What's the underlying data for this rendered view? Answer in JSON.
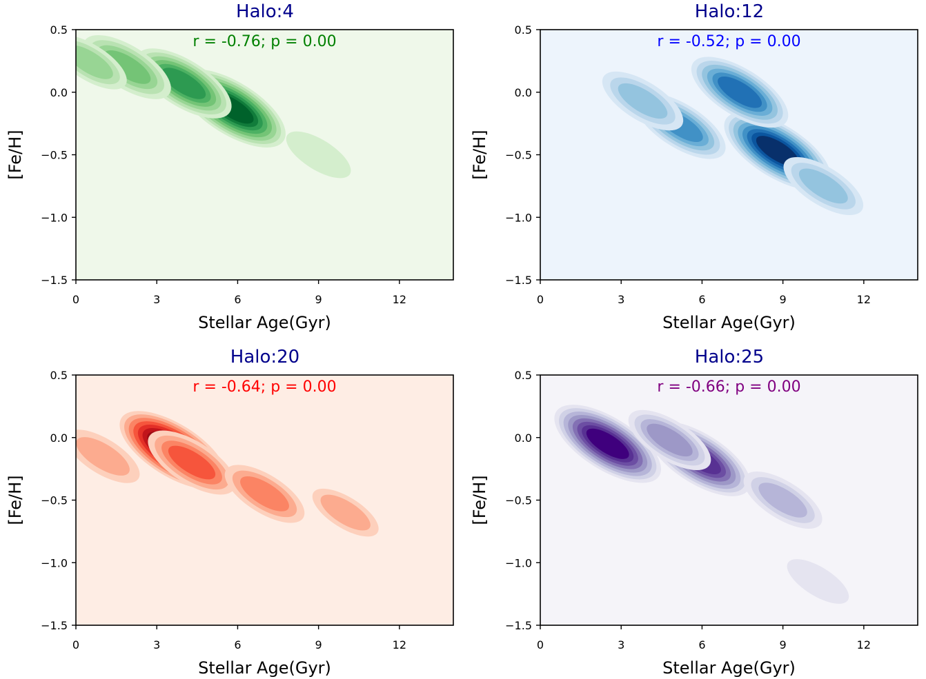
{
  "chart_data": [
    {
      "type": "contour",
      "title": "Halo:4",
      "annotation": "r = -0.76; p = 0.00",
      "xlabel": "Stellar Age(Gyr)",
      "ylabel": "[Fe/H]",
      "xlim": [
        0,
        14
      ],
      "ylim": [
        -1.5,
        0.5
      ],
      "xticks": [
        0,
        3,
        6,
        9,
        12
      ],
      "yticks": [
        -1.5,
        -1.0,
        -0.5,
        0.0,
        0.5
      ],
      "ytick_labels": [
        "−1.5",
        "−1.0",
        "−0.5",
        "0.0",
        "0.5"
      ],
      "colormap": "Greens",
      "colors": [
        "#eff8ea",
        "#d4eecd",
        "#b9e2b2",
        "#98d594",
        "#74c476",
        "#4db163",
        "#2d9a51",
        "#117c3b",
        "#00622b"
      ],
      "peaks": [
        {
          "x": 5.8,
          "y": -0.13,
          "level": 1.0
        },
        {
          "x": 4.0,
          "y": 0.07,
          "level": 0.72
        },
        {
          "x": 1.9,
          "y": 0.2,
          "level": 0.55
        },
        {
          "x": 0.5,
          "y": 0.24,
          "level": 0.32
        },
        {
          "x": 9.0,
          "y": -0.5,
          "level": 0.18
        }
      ]
    },
    {
      "type": "contour",
      "title": "Halo:12",
      "annotation": "r = -0.52; p = 0.00",
      "xlabel": "Stellar Age(Gyr)",
      "ylabel": "[Fe/H]",
      "xlim": [
        0,
        14
      ],
      "ylim": [
        -1.5,
        0.5
      ],
      "xticks": [
        0,
        3,
        6,
        9,
        12
      ],
      "yticks": [
        -1.5,
        -1.0,
        -0.5,
        0.0,
        0.5
      ],
      "ytick_labels": [
        "−1.5",
        "−1.0",
        "−0.5",
        "0.0",
        "0.5"
      ],
      "colormap": "Blues",
      "colors": [
        "#edf4fc",
        "#d6e6f4",
        "#bad6eb",
        "#94c4df",
        "#6aaed6",
        "#4191c6",
        "#2171b5",
        "#0b559f",
        "#08306b"
      ],
      "peaks": [
        {
          "x": 8.8,
          "y": -0.47,
          "level": 1.0
        },
        {
          "x": 7.4,
          "y": 0.0,
          "level": 0.75
        },
        {
          "x": 5.2,
          "y": -0.27,
          "level": 0.6
        },
        {
          "x": 3.8,
          "y": -0.07,
          "level": 0.42
        },
        {
          "x": 10.5,
          "y": -0.75,
          "level": 0.4
        }
      ]
    },
    {
      "type": "contour",
      "title": "Halo:20",
      "annotation": "r = -0.64; p = 0.00",
      "xlabel": "Stellar Age(Gyr)",
      "ylabel": "[Fe/H]",
      "xlim": [
        0,
        14
      ],
      "ylim": [
        -1.5,
        0.5
      ],
      "xticks": [
        0,
        3,
        6,
        9,
        12
      ],
      "yticks": [
        -1.5,
        -1.0,
        -0.5,
        0.0,
        0.5
      ],
      "ytick_labels": [
        "−1.5",
        "−1.0",
        "−0.5",
        "0.0",
        "0.5"
      ],
      "colormap": "Reds",
      "colors": [
        "#feede4",
        "#fdd0bc",
        "#fcab8f",
        "#fb8464",
        "#f6553c",
        "#e32f27",
        "#c1151b",
        "#9d0d15",
        "#67000d"
      ],
      "peaks": [
        {
          "x": 3.6,
          "y": -0.1,
          "level": 1.0
        },
        {
          "x": 4.3,
          "y": -0.2,
          "level": 0.55
        },
        {
          "x": 7.0,
          "y": -0.45,
          "level": 0.4
        },
        {
          "x": 1.0,
          "y": -0.15,
          "level": 0.3
        },
        {
          "x": 10.0,
          "y": -0.6,
          "level": 0.2
        }
      ]
    },
    {
      "type": "contour",
      "title": "Halo:25",
      "annotation": "r = -0.66; p = 0.00",
      "xlabel": "Stellar Age(Gyr)",
      "ylabel": "[Fe/H]",
      "xlim": [
        0,
        14
      ],
      "ylim": [
        -1.5,
        0.5
      ],
      "xticks": [
        0,
        3,
        6,
        9,
        12
      ],
      "yticks": [
        -1.5,
        -1.0,
        -0.5,
        0.0,
        0.5
      ],
      "ytick_labels": [
        "−1.5",
        "−1.0",
        "−0.5",
        "0.0",
        "0.5"
      ],
      "colormap": "Purples",
      "colors": [
        "#f5f4f9",
        "#e5e4f0",
        "#d0d1e6",
        "#b6b5d8",
        "#9d98c7",
        "#8371b4",
        "#6c4ea3",
        "#583193",
        "#3f007d"
      ],
      "peaks": [
        {
          "x": 2.5,
          "y": -0.05,
          "level": 1.0
        },
        {
          "x": 5.9,
          "y": -0.17,
          "level": 0.88
        },
        {
          "x": 4.8,
          "y": -0.02,
          "level": 0.45
        },
        {
          "x": 9.0,
          "y": -0.5,
          "level": 0.38
        },
        {
          "x": 10.3,
          "y": -1.15,
          "level": 0.15
        }
      ]
    }
  ]
}
